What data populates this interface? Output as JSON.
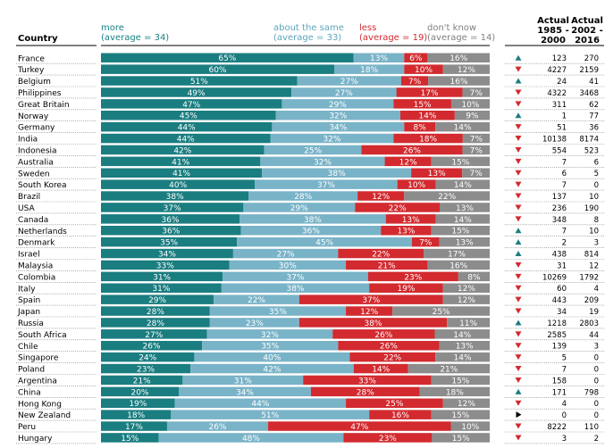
{
  "headers": {
    "country": "Country",
    "more_line1": "more",
    "more_line2": "(average = 34)",
    "same_line1": "about the same",
    "same_line2": "(average = 33)",
    "less_line1": "less",
    "less_line2": "(average = 19)",
    "dk_line1": "don't know",
    "dk_line2": "(average = 14)",
    "actual1_line1": "Actual",
    "actual1_line2": "1985 -",
    "actual1_line3": "2000",
    "actual2_line1": "Actual",
    "actual2_line2": "2002 -",
    "actual2_line3": "2016"
  },
  "colors": {
    "more": "#1a7d80",
    "same": "#79b3c8",
    "less": "#d22a2f",
    "dontknow": "#8c8c8c",
    "up": "#1a7d80",
    "down": "#d22a2f",
    "flat": "#000000"
  },
  "chart_data": {
    "type": "bar",
    "stacked": true,
    "orientation": "horizontal",
    "value_unit": "%",
    "series_names": [
      "more",
      "about the same",
      "less",
      "don't know"
    ],
    "categories": [
      "France",
      "Turkey",
      "Belgium",
      "Philippines",
      "Great Britain",
      "Norway",
      "Germany",
      "India",
      "Indonesia",
      "Australia",
      "Sweden",
      "South Korea",
      "Brazil",
      "USA",
      "Canada",
      "Netherlands",
      "Denmark",
      "Israel",
      "Malaysia",
      "Colombia",
      "Italy",
      "Spain",
      "Japan",
      "Russia",
      "South Africa",
      "Chile",
      "Singapore",
      "Poland",
      "Argentina",
      "China",
      "Hong Kong",
      "New Zealand",
      "Peru",
      "Hungary"
    ],
    "series": [
      {
        "name": "more",
        "values": [
          65,
          60,
          51,
          49,
          47,
          45,
          44,
          44,
          42,
          41,
          41,
          40,
          38,
          37,
          36,
          36,
          35,
          34,
          33,
          31,
          31,
          29,
          28,
          28,
          27,
          26,
          24,
          23,
          21,
          20,
          19,
          18,
          17,
          15
        ]
      },
      {
        "name": "about the same",
        "values": [
          13,
          18,
          27,
          27,
          29,
          32,
          34,
          32,
          25,
          32,
          38,
          37,
          28,
          29,
          38,
          36,
          45,
          27,
          30,
          37,
          38,
          22,
          35,
          23,
          32,
          35,
          40,
          42,
          31,
          34,
          44,
          51,
          26,
          48
        ]
      },
      {
        "name": "less",
        "values": [
          6,
          10,
          7,
          17,
          15,
          14,
          8,
          18,
          26,
          12,
          13,
          10,
          12,
          22,
          13,
          13,
          7,
          22,
          21,
          23,
          19,
          37,
          12,
          38,
          26,
          26,
          22,
          14,
          33,
          28,
          25,
          16,
          47,
          23
        ]
      },
      {
        "name": "don't know",
        "values": [
          16,
          12,
          16,
          7,
          10,
          9,
          14,
          7,
          7,
          15,
          7,
          14,
          22,
          13,
          14,
          15,
          13,
          17,
          16,
          8,
          12,
          12,
          25,
          11,
          14,
          13,
          14,
          21,
          15,
          18,
          12,
          15,
          10,
          15
        ]
      }
    ],
    "actual_1985_2000": [
      123,
      4227,
      24,
      4322,
      311,
      1,
      51,
      10138,
      554,
      7,
      6,
      7,
      137,
      236,
      348,
      7,
      2,
      438,
      31,
      10269,
      60,
      443,
      34,
      1218,
      2585,
      139,
      5,
      7,
      158,
      171,
      4,
      0,
      8222,
      3
    ],
    "actual_2002_2016": [
      270,
      2159,
      41,
      3468,
      62,
      77,
      36,
      8174,
      523,
      6,
      5,
      0,
      10,
      190,
      8,
      10,
      3,
      814,
      12,
      1792,
      4,
      209,
      19,
      2803,
      44,
      3,
      0,
      0,
      0,
      798,
      0,
      0,
      110,
      2
    ],
    "trend": [
      "up",
      "down",
      "up",
      "down",
      "down",
      "up",
      "down",
      "down",
      "down",
      "down",
      "down",
      "down",
      "down",
      "down",
      "down",
      "up",
      "up",
      "up",
      "down",
      "down",
      "down",
      "down",
      "down",
      "up",
      "down",
      "down",
      "down",
      "down",
      "down",
      "up",
      "down",
      "flat",
      "down",
      "down"
    ]
  }
}
